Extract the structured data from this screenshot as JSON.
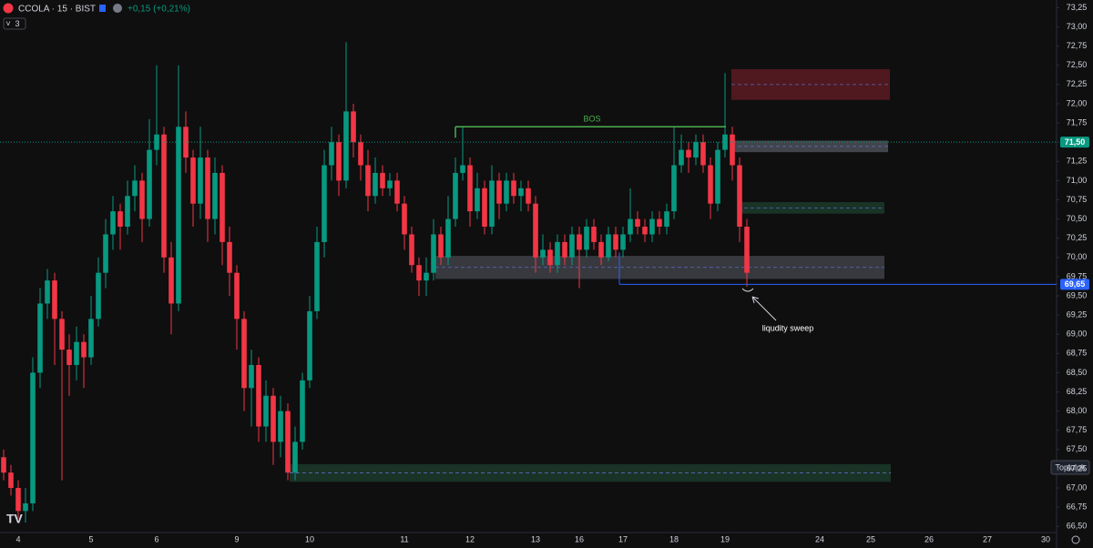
{
  "header": {
    "symbol": "CCOLA · 15 · BIST",
    "change": "+0,15 (+0,21%)",
    "indicator_count": 3
  },
  "community_button": "Topluluk",
  "chart_data": {
    "type": "candlestick",
    "up_color": "#089981",
    "down_color": "#f23645",
    "ylim": [
      66.42,
      73.35
    ],
    "grid": false,
    "yticks": [
      {
        "value": 66.5,
        "label": "66,50"
      },
      {
        "value": 66.75,
        "label": "66,75"
      },
      {
        "value": 67,
        "label": "67,00"
      },
      {
        "value": 67.25,
        "label": "67,25"
      },
      {
        "value": 67.5,
        "label": "67,50"
      },
      {
        "value": 67.75,
        "label": "67,75"
      },
      {
        "value": 68,
        "label": "68,00"
      },
      {
        "value": 68.25,
        "label": "68,25"
      },
      {
        "value": 68.5,
        "label": "68,50"
      },
      {
        "value": 68.75,
        "label": "68,75"
      },
      {
        "value": 69,
        "label": "69,00"
      },
      {
        "value": 69.25,
        "label": "69,25"
      },
      {
        "value": 69.5,
        "label": "69,50"
      },
      {
        "value": 69.75,
        "label": "69,75"
      },
      {
        "value": 70,
        "label": "70,00"
      },
      {
        "value": 70.25,
        "label": "70,25"
      },
      {
        "value": 70.5,
        "label": "70,50"
      },
      {
        "value": 70.75,
        "label": "70,75"
      },
      {
        "value": 71,
        "label": "71,00"
      },
      {
        "value": 71.25,
        "label": "71,25"
      },
      {
        "value": 71.5,
        "label": "71,50"
      },
      {
        "value": 71.75,
        "label": "71,75"
      },
      {
        "value": 72,
        "label": "72,00"
      },
      {
        "value": 72.25,
        "label": "72,25"
      },
      {
        "value": 72.5,
        "label": "72,50"
      },
      {
        "value": 72.75,
        "label": "72,75"
      },
      {
        "value": 73,
        "label": "73,00"
      },
      {
        "value": 73.25,
        "label": "73,25"
      }
    ],
    "categories": [
      null,
      null,
      "4",
      null,
      null,
      null,
      null,
      null,
      null,
      null,
      null,
      null,
      "5",
      null,
      null,
      null,
      null,
      null,
      null,
      null,
      null,
      "6",
      null,
      null,
      null,
      null,
      null,
      null,
      null,
      null,
      null,
      null,
      "9",
      null,
      null,
      null,
      null,
      null,
      null,
      null,
      null,
      null,
      "10",
      null,
      null,
      null,
      null,
      null,
      null,
      null,
      null,
      null,
      null,
      null,
      null,
      "11",
      null,
      null,
      null,
      null,
      null,
      null,
      null,
      null,
      "12",
      null,
      null,
      null,
      null,
      null,
      null,
      null,
      null,
      "13",
      null,
      null,
      null,
      null,
      null,
      "16",
      null,
      null,
      null,
      null,
      null,
      "17",
      null,
      null,
      null,
      null,
      null,
      null,
      "18",
      null,
      null,
      null,
      null,
      null,
      null,
      "19",
      null,
      null,
      null,
      null,
      null,
      null,
      null,
      null,
      null,
      null,
      null,
      null,
      "24",
      null,
      null,
      null,
      null,
      null,
      null,
      "25",
      null,
      null,
      null,
      null,
      null,
      null,
      null,
      "26",
      null,
      null,
      null,
      null,
      null,
      null,
      null,
      "27",
      null,
      null,
      null,
      null,
      null,
      null,
      null,
      "30",
      null
    ],
    "candles": [
      [
        67.4,
        67.5,
        67.1,
        67.2
      ],
      [
        67.2,
        67.3,
        66.9,
        67.0
      ],
      [
        67.0,
        67.1,
        66.6,
        66.7
      ],
      [
        66.7,
        67.0,
        66.55,
        66.8
      ],
      [
        66.8,
        68.7,
        66.7,
        68.5
      ],
      [
        68.5,
        69.6,
        68.3,
        69.4
      ],
      [
        69.4,
        69.85,
        69.2,
        69.7
      ],
      [
        69.7,
        69.8,
        68.6,
        69.2
      ],
      [
        69.2,
        69.3,
        67.1,
        68.8
      ],
      [
        68.8,
        69.0,
        68.2,
        68.6
      ],
      [
        68.6,
        69.1,
        68.4,
        68.9
      ],
      [
        68.9,
        69.0,
        68.3,
        68.7
      ],
      [
        68.7,
        69.5,
        68.6,
        69.2
      ],
      [
        69.2,
        70.0,
        69.1,
        69.8
      ],
      [
        69.8,
        70.5,
        69.6,
        70.3
      ],
      [
        70.3,
        70.8,
        70.1,
        70.6
      ],
      [
        70.6,
        70.7,
        70.1,
        70.4
      ],
      [
        70.4,
        71.0,
        70.3,
        70.8
      ],
      [
        70.8,
        71.2,
        70.6,
        71.0
      ],
      [
        71.0,
        71.1,
        70.2,
        70.5
      ],
      [
        70.5,
        71.8,
        70.4,
        71.4
      ],
      [
        71.4,
        72.5,
        71.2,
        71.6
      ],
      [
        71.6,
        71.7,
        69.8,
        70.0
      ],
      [
        70.0,
        70.2,
        69.0,
        69.4
      ],
      [
        69.4,
        72.5,
        69.3,
        71.7
      ],
      [
        71.7,
        71.9,
        71.1,
        71.3
      ],
      [
        71.3,
        71.4,
        70.4,
        70.7
      ],
      [
        70.7,
        71.7,
        70.5,
        71.3
      ],
      [
        71.3,
        71.4,
        70.2,
        70.5
      ],
      [
        70.5,
        71.3,
        70.3,
        71.1
      ],
      [
        71.1,
        71.2,
        69.9,
        70.2
      ],
      [
        70.2,
        70.4,
        69.5,
        69.8
      ],
      [
        69.8,
        69.9,
        68.8,
        69.2
      ],
      [
        69.2,
        69.3,
        68.0,
        68.3
      ],
      [
        68.3,
        68.8,
        67.8,
        68.6
      ],
      [
        68.6,
        68.7,
        67.6,
        67.8
      ],
      [
        67.8,
        68.4,
        67.6,
        68.2
      ],
      [
        68.2,
        68.3,
        67.3,
        67.6
      ],
      [
        67.6,
        68.2,
        67.4,
        68.0
      ],
      [
        68.0,
        68.1,
        67.1,
        67.2
      ],
      [
        67.2,
        67.8,
        67.1,
        67.6
      ],
      [
        67.6,
        68.5,
        67.5,
        68.4
      ],
      [
        68.4,
        69.5,
        68.3,
        69.3
      ],
      [
        69.3,
        70.4,
        69.2,
        70.2
      ],
      [
        70.2,
        71.4,
        70.0,
        71.2
      ],
      [
        71.2,
        71.7,
        71.0,
        71.5
      ],
      [
        71.5,
        71.6,
        70.8,
        71.0
      ],
      [
        71.0,
        72.8,
        70.9,
        71.9
      ],
      [
        71.9,
        72.0,
        71.3,
        71.5
      ],
      [
        71.5,
        71.6,
        71.0,
        71.2
      ],
      [
        71.2,
        71.4,
        70.6,
        70.8
      ],
      [
        70.8,
        71.3,
        70.7,
        71.1
      ],
      [
        71.1,
        71.2,
        70.8,
        70.9
      ],
      [
        70.9,
        71.1,
        70.8,
        71.0
      ],
      [
        71.0,
        71.1,
        70.6,
        70.7
      ],
      [
        70.7,
        70.8,
        70.1,
        70.3
      ],
      [
        70.3,
        70.4,
        69.8,
        69.9
      ],
      [
        69.9,
        70.0,
        69.5,
        69.7
      ],
      [
        69.7,
        70.0,
        69.5,
        69.8
      ],
      [
        69.8,
        70.5,
        69.7,
        70.3
      ],
      [
        70.3,
        70.4,
        69.9,
        70.0
      ],
      [
        70.0,
        70.8,
        69.9,
        70.5
      ],
      [
        70.5,
        71.3,
        70.4,
        71.1
      ],
      [
        71.1,
        71.7,
        71.0,
        71.2
      ],
      [
        71.2,
        71.3,
        70.4,
        70.6
      ],
      [
        70.6,
        71.1,
        70.5,
        70.9
      ],
      [
        70.9,
        71.0,
        70.3,
        70.4
      ],
      [
        70.4,
        71.2,
        70.3,
        71.0
      ],
      [
        71.0,
        71.1,
        70.5,
        70.7
      ],
      [
        70.7,
        71.1,
        70.6,
        71.0
      ],
      [
        71.0,
        71.1,
        70.7,
        70.8
      ],
      [
        70.8,
        71.0,
        70.6,
        70.9
      ],
      [
        70.9,
        71.0,
        70.6,
        70.7
      ],
      [
        70.7,
        70.8,
        69.8,
        70.0
      ],
      [
        70.0,
        70.3,
        69.9,
        70.1
      ],
      [
        70.1,
        70.2,
        69.8,
        69.9
      ],
      [
        69.9,
        70.3,
        69.8,
        70.2
      ],
      [
        70.2,
        70.3,
        69.9,
        70.0
      ],
      [
        70.0,
        70.4,
        69.9,
        70.3
      ],
      [
        70.3,
        70.4,
        69.6,
        70.1
      ],
      [
        70.1,
        70.5,
        70.0,
        70.4
      ],
      [
        70.4,
        70.5,
        70.1,
        70.2
      ],
      [
        70.2,
        70.3,
        69.9,
        70.0
      ],
      [
        70.0,
        70.4,
        69.95,
        70.3
      ],
      [
        70.3,
        70.4,
        70.0,
        70.1
      ],
      [
        70.1,
        70.4,
        70.0,
        70.3
      ],
      [
        70.3,
        70.9,
        70.2,
        70.5
      ],
      [
        70.5,
        70.6,
        70.3,
        70.4
      ],
      [
        70.4,
        70.5,
        70.2,
        70.3
      ],
      [
        70.3,
        70.6,
        70.2,
        70.5
      ],
      [
        70.5,
        70.6,
        70.3,
        70.4
      ],
      [
        70.4,
        70.7,
        70.3,
        70.6
      ],
      [
        70.6,
        71.7,
        70.5,
        71.2
      ],
      [
        71.2,
        71.6,
        71.1,
        71.4
      ],
      [
        71.4,
        71.5,
        71.1,
        71.3
      ],
      [
        71.3,
        71.6,
        71.2,
        71.5
      ],
      [
        71.5,
        71.6,
        71.1,
        71.2
      ],
      [
        71.2,
        71.3,
        70.5,
        70.7
      ],
      [
        70.7,
        71.5,
        70.6,
        71.4
      ],
      [
        71.4,
        72.4,
        71.3,
        71.6
      ],
      [
        71.6,
        71.7,
        71.0,
        71.2
      ],
      [
        71.2,
        71.3,
        70.2,
        70.4
      ],
      [
        70.4,
        70.5,
        69.62,
        69.8
      ],
      null,
      null,
      null,
      null,
      null,
      null,
      null,
      null,
      null,
      null,
      null,
      null,
      null,
      null,
      null,
      null,
      null,
      null,
      null,
      null,
      null,
      null,
      null,
      null,
      null,
      null,
      null,
      null,
      null,
      null,
      null,
      null,
      null,
      null,
      null,
      null,
      null,
      null,
      null,
      null,
      null,
      null
    ],
    "price_lines": [
      {
        "value": 71.5,
        "label": "71,50",
        "color": "#089981"
      },
      {
        "value": 69.65,
        "label": "69,65",
        "color": "#2962ff"
      }
    ],
    "zones": [
      {
        "low": 72.05,
        "high": 72.45,
        "color": "#5c1a22"
      },
      {
        "low": 71.37,
        "high": 71.52,
        "color": "#4a4d55"
      },
      {
        "low": 70.57,
        "high": 70.72,
        "color": "#1b3a2a"
      },
      {
        "low": 69.72,
        "high": 70.02,
        "color": "#3f4148"
      },
      {
        "low": 67.08,
        "high": 67.31,
        "color": "#1b3a2a"
      }
    ],
    "annotations": [
      {
        "text": "BOS",
        "value": 71.7
      },
      {
        "text": "liqudity sweep"
      }
    ]
  }
}
